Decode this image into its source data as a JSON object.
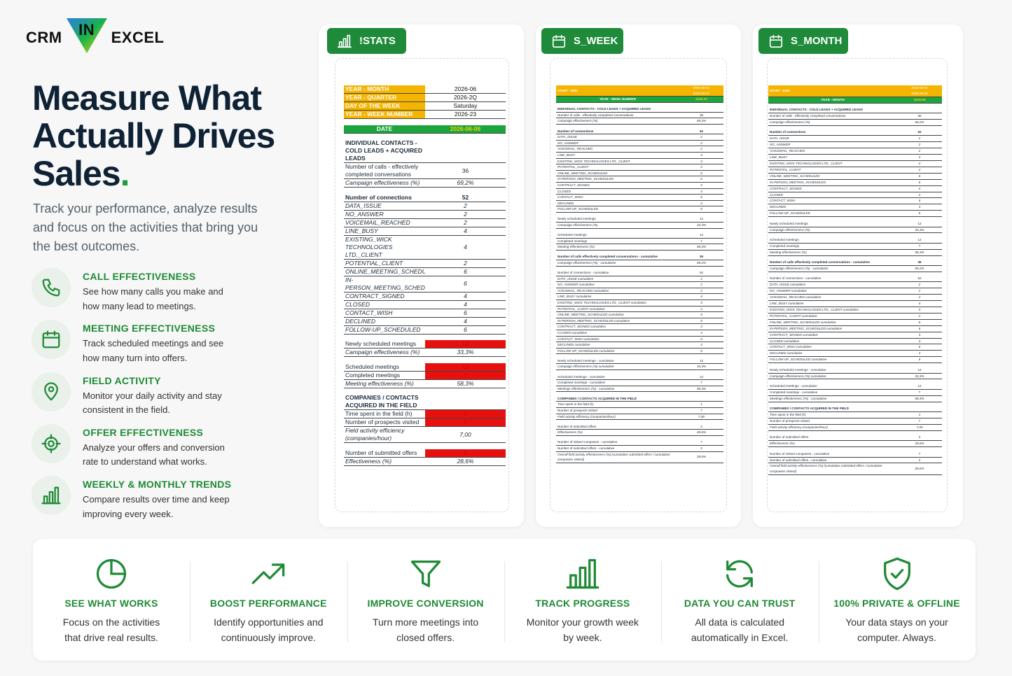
{
  "logo": {
    "left": "CRM",
    "middle": "IN",
    "right": "EXCEL"
  },
  "hero": {
    "headline": [
      "Measure What",
      "Actually Drives",
      "Sales"
    ],
    "headline_end": ".",
    "intro": "Track your performance, analyze results and focus on the activities that bring you the best outcomes."
  },
  "features": [
    {
      "title": "CALL EFFECTIVENESS",
      "text": "See how many calls you make and how many lead to meetings."
    },
    {
      "title": "MEETING EFFECTIVENESS",
      "text": "Track scheduled meetings and see how many turn into offers."
    },
    {
      "title": "FIELD ACTIVITY",
      "text": "Monitor your daily activity and stay consistent in the field."
    },
    {
      "title": "OFFER EFFECTIVENESS",
      "text": "Analyze your offers and conversion rate to understand what works."
    },
    {
      "title": "WEEKLY & MONTHLY TRENDS",
      "text": "Compare results over time and keep improving every week."
    }
  ],
  "sheets": [
    {
      "tab": "!STATS",
      "rows": [
        {
          "label": "YEAR - MONTH",
          "value": "2026-06",
          "style": "yellow"
        },
        {
          "label": "YEAR - QUARTER",
          "value": "2026-2Q",
          "style": "yellow"
        },
        {
          "label": "DAY OF THE WEEK",
          "value": "Saturday",
          "style": "yellow"
        },
        {
          "label": "YEAR - WEEK NUMBER",
          "value": "2026-23",
          "style": "yellow"
        },
        {
          "label": "DATE",
          "value": "2026-06-06",
          "style": "green"
        },
        {
          "label": "INDIVIDUAL CONTACTS - COLD LEADS + ACQUIRED LEADS",
          "style": "section"
        },
        {
          "label": "Number of calls - effectively completed conversations",
          "value": "36"
        },
        {
          "label": "Campaign effectiveness (%)",
          "value": "69,2%",
          "style": "italic"
        },
        {
          "label": "Number of connections",
          "value": "52",
          "style": "section"
        },
        {
          "label": "DATA_ISSUE",
          "value": "2",
          "style": "italic"
        },
        {
          "label": "NO_ANSWER",
          "value": "2",
          "style": "italic"
        },
        {
          "label": "VOICEMAIL_REACHED",
          "value": "2",
          "style": "italic"
        },
        {
          "label": "LINE_BUSY",
          "value": "4",
          "style": "italic"
        },
        {
          "label": "EXISTING_WICK TECHNOLOGIES LTD._CLIENT",
          "value": "4",
          "style": "italic"
        },
        {
          "label": "POTENTIAL_CLIENT",
          "value": "2",
          "style": "italic"
        },
        {
          "label": "ONLINE_MEETING_SCHEDULED",
          "value": "6",
          "style": "italic"
        },
        {
          "label": "IN-PERSON_MEETING_SCHEDULED",
          "value": "6",
          "style": "italic"
        },
        {
          "label": "CONTRACT_SIGNED",
          "value": "4",
          "style": "italic"
        },
        {
          "label": "CLOSED",
          "value": "4",
          "style": "italic"
        },
        {
          "label": "CONTACT_WISH",
          "value": "6",
          "style": "italic"
        },
        {
          "label": "DECLINED",
          "value": "4",
          "style": "italic"
        },
        {
          "label": "FOLLOW-UP_SCHEDULED",
          "value": "6",
          "style": "italic"
        },
        {
          "label": "Newly scheduled meetings",
          "value": "12",
          "style": "red"
        },
        {
          "label": "Campaign effectiveness (%)",
          "value": "33,3%",
          "style": "italic"
        },
        {
          "label": "Scheduled meetings",
          "value": "12",
          "style": "red"
        },
        {
          "label": "Completed meetings",
          "value": "7",
          "style": "red"
        },
        {
          "label": "Meeting effectiveness (%)",
          "value": "58,3%",
          "style": "italic"
        },
        {
          "label": "COMPANIES / CONTACTS ACQUIRED IN THE FIELD",
          "style": "section"
        },
        {
          "label": "Time spent in the field (h)",
          "value": "1",
          "style": "red"
        },
        {
          "label": "Number of prospects visited",
          "value": "7",
          "style": "red"
        },
        {
          "label": "Field activity efficiency (companies/hour)",
          "value": "7,00",
          "style": "italic"
        },
        {
          "label": "Number of submitted offers",
          "value": "2",
          "style": "red"
        },
        {
          "label": "Effectiveness (%)",
          "value": "28,6%",
          "style": "italic"
        }
      ]
    },
    {
      "tab": "S_WEEK",
      "rows": [
        {
          "label": "START - END",
          "value": [
            "2026-06-01",
            "2026-06-07"
          ],
          "style": "yellow"
        },
        {
          "label": "YEAR - WEEK NUMBER",
          "value": "2026-23",
          "style": "green"
        },
        {
          "label": "INDIVIDUAL CONTACTS - COLD LEADS + ACQUIRED LEADS",
          "style": "section"
        },
        {
          "label": "Number of calls - effectively completed conversations",
          "value": "36"
        },
        {
          "label": "Campaign effectiveness (%)",
          "value": "69,2%",
          "style": "italic"
        },
        {
          "label": "Number of connections",
          "value": "52",
          "style": "section"
        },
        {
          "label": "DATA_ISSUE",
          "value": "2",
          "style": "italic"
        },
        {
          "label": "NO_ANSWER",
          "value": "2",
          "style": "italic"
        },
        {
          "label": "VOICEMAIL_REACHED",
          "value": "2",
          "style": "italic"
        },
        {
          "label": "LINE_BUSY",
          "value": "4",
          "style": "italic"
        },
        {
          "label": "EXISTING_WICK TECHNOLOGIES LTD._CLIENT",
          "value": "4",
          "style": "italic"
        },
        {
          "label": "POTENTIAL_CLIENT",
          "value": "2",
          "style": "italic"
        },
        {
          "label": "ONLINE_MEETING_SCHEDULED",
          "value": "6",
          "style": "italic"
        },
        {
          "label": "IN-PERSON_MEETING_SCHEDULED",
          "value": "6",
          "style": "italic"
        },
        {
          "label": "CONTRACT_SIGNED",
          "value": "4",
          "style": "italic"
        },
        {
          "label": "CLOSED",
          "value": "4",
          "style": "italic"
        },
        {
          "label": "CONTACT_WISH",
          "value": "6",
          "style": "italic"
        },
        {
          "label": "DECLINED",
          "value": "4",
          "style": "italic"
        },
        {
          "label": "FOLLOW-UP_SCHEDULED",
          "value": "6",
          "style": "italic"
        },
        {
          "label": "Newly scheduled meetings",
          "value": "12"
        },
        {
          "label": "Campaign effectiveness (%)",
          "value": "33,3%",
          "style": "italic"
        },
        {
          "label": "Scheduled meetings",
          "value": "12"
        },
        {
          "label": "Completed meetings",
          "value": "7"
        },
        {
          "label": "Meeting effectiveness (%)",
          "value": "58,3%",
          "style": "italic"
        },
        {
          "label": "Number of calls effectively completed conversations - cumulative",
          "value": "36",
          "style": "section"
        },
        {
          "label": "Campaign effectiveness (%) - cumulative",
          "value": "69,2%",
          "style": "italic"
        },
        {
          "label": "Number of connections - cumulative",
          "value": "52"
        },
        {
          "label": "DATA_ISSUE cumulative",
          "value": "2",
          "style": "italic"
        },
        {
          "label": "NO_ANSWER cumulative",
          "value": "2",
          "style": "italic"
        },
        {
          "label": "VOICEMAIL_REACHED cumulative",
          "value": "2",
          "style": "italic"
        },
        {
          "label": "LINE_BUSY cumulative",
          "value": "4",
          "style": "italic"
        },
        {
          "label": "EXISTING_WICK TECHNOLOGIES LTD._CLIENT cumulative",
          "value": "4",
          "style": "italic"
        },
        {
          "label": "POTENTIAL_CLIENT cumulative",
          "value": "2",
          "style": "italic"
        },
        {
          "label": "ONLINE_MEETING_SCHEDULED cumulative",
          "value": "6",
          "style": "italic"
        },
        {
          "label": "IN-PERSON_MEETING_SCHEDULED cumulative",
          "value": "6",
          "style": "italic"
        },
        {
          "label": "CONTRACT_SIGNED cumulative",
          "value": "4",
          "style": "italic"
        },
        {
          "label": "CLOSED cumulative",
          "value": "4",
          "style": "italic"
        },
        {
          "label": "CONTACT_WISH cumulative",
          "value": "6",
          "style": "italic"
        },
        {
          "label": "DECLINED cumulative",
          "value": "4",
          "style": "italic"
        },
        {
          "label": "FOLLOW-UP_SCHEDULED cumulative",
          "value": "6",
          "style": "italic"
        },
        {
          "label": "Newly scheduled meetings - cumulative",
          "value": "12"
        },
        {
          "label": "Campaign effectiveness (%) cumulative",
          "value": "33,3%",
          "style": "italic"
        },
        {
          "label": "Scheduled meetings - cumulative",
          "value": "12"
        },
        {
          "label": "Completed meetings - cumulative",
          "value": "7"
        },
        {
          "label": "Meetings effectiveness (%) - cumulative",
          "value": "58,3%",
          "style": "italic"
        },
        {
          "label": "COMPANIES / CONTACTS ACQUIRED IN THE FIELD",
          "style": "section"
        },
        {
          "label": "Time spent in the field (h)",
          "value": "1"
        },
        {
          "label": "Number of prospects visited",
          "value": "7"
        },
        {
          "label": "Field activity efficiency (companies/hour)",
          "value": "7,00",
          "style": "italic"
        },
        {
          "label": "Number of submitted offers",
          "value": "2"
        },
        {
          "label": "Effectiveness (%)",
          "value": "28,6%",
          "style": "italic"
        },
        {
          "label": "Number of visited companies - cumulative",
          "value": "7"
        },
        {
          "label": "Number of submitted offers - cumulative",
          "value": "2"
        },
        {
          "label": "Overall field activity effectiveness (%) (cumulative submitted offers / cumulative companies visited)",
          "value": "28,6%",
          "style": "italic"
        }
      ]
    },
    {
      "tab": "S_MONTH",
      "rows": [
        {
          "label": "START - END",
          "value": [
            "2026-06-01",
            "2026-06-30"
          ],
          "style": "yellow"
        },
        {
          "label": "YEAR - MONTH",
          "value": "2026-06",
          "style": "green"
        },
        {
          "label": "INDIVIDUAL CONTACTS - COLD LEADS + ACQUIRED LEADS",
          "style": "section"
        },
        {
          "label": "Number of calls - effectively completed conversations",
          "value": "36"
        },
        {
          "label": "Campaign effectiveness (%)",
          "value": "69,2%",
          "style": "italic"
        },
        {
          "label": "Number of connections",
          "value": "52",
          "style": "section"
        },
        {
          "label": "DATA_ISSUE",
          "value": "2",
          "style": "italic"
        },
        {
          "label": "NO_ANSWER",
          "value": "2",
          "style": "italic"
        },
        {
          "label": "VOICEMAIL_REACHED",
          "value": "2",
          "style": "italic"
        },
        {
          "label": "LINE_BUSY",
          "value": "4",
          "style": "italic"
        },
        {
          "label": "EXISTING_WICK TECHNOLOGIES LTD._CLIENT",
          "value": "4",
          "style": "italic"
        },
        {
          "label": "POTENTIAL_CLIENT",
          "value": "2",
          "style": "italic"
        },
        {
          "label": "ONLINE_MEETING_SCHEDULED",
          "value": "6",
          "style": "italic"
        },
        {
          "label": "IN-PERSON_MEETING_SCHEDULED",
          "value": "6",
          "style": "italic"
        },
        {
          "label": "CONTRACT_SIGNED",
          "value": "4",
          "style": "italic"
        },
        {
          "label": "CLOSED",
          "value": "4",
          "style": "italic"
        },
        {
          "label": "CONTACT_WISH",
          "value": "6",
          "style": "italic"
        },
        {
          "label": "DECLINED",
          "value": "4",
          "style": "italic"
        },
        {
          "label": "FOLLOW-UP_SCHEDULED",
          "value": "6",
          "style": "italic"
        },
        {
          "label": "Newly scheduled meetings",
          "value": "12"
        },
        {
          "label": "Campaign effectiveness (%)",
          "value": "33,3%",
          "style": "italic"
        },
        {
          "label": "Scheduled meetings",
          "value": "12"
        },
        {
          "label": "Completed meetings",
          "value": "7"
        },
        {
          "label": "Meeting effectiveness (%)",
          "value": "58,3%",
          "style": "italic"
        },
        {
          "label": "Number of calls effectively completed conversations - cumulative",
          "value": "36",
          "style": "section"
        },
        {
          "label": "Campaign effectiveness (%) - cumulative",
          "value": "69,2%",
          "style": "italic"
        },
        {
          "label": "Number of connections - cumulative",
          "value": "52"
        },
        {
          "label": "DATA_ISSUE cumulative",
          "value": "2",
          "style": "italic"
        },
        {
          "label": "NO_ANSWER cumulative",
          "value": "2",
          "style": "italic"
        },
        {
          "label": "VOICEMAIL_REACHED cumulative",
          "value": "2",
          "style": "italic"
        },
        {
          "label": "LINE_BUSY cumulative",
          "value": "4",
          "style": "italic"
        },
        {
          "label": "EXISTING_WICK TECHNOLOGIES LTD._CLIENT cumulative",
          "value": "4",
          "style": "italic"
        },
        {
          "label": "POTENTIAL_CLIENT cumulative",
          "value": "2",
          "style": "italic"
        },
        {
          "label": "ONLINE_MEETING_SCHEDULED cumulative",
          "value": "6",
          "style": "italic"
        },
        {
          "label": "IN-PERSON_MEETING_SCHEDULED cumulative",
          "value": "6",
          "style": "italic"
        },
        {
          "label": "CONTRACT_SIGNED cumulative",
          "value": "4",
          "style": "italic"
        },
        {
          "label": "CLOSED cumulative",
          "value": "4",
          "style": "italic"
        },
        {
          "label": "CONTACT_WISH cumulative",
          "value": "6",
          "style": "italic"
        },
        {
          "label": "DECLINED cumulative",
          "value": "4",
          "style": "italic"
        },
        {
          "label": "FOLLOW-UP_SCHEDULED cumulative",
          "value": "6",
          "style": "italic"
        },
        {
          "label": "Newly scheduled meetings - cumulative",
          "value": "12"
        },
        {
          "label": "Campaign effectiveness (%) cumulative",
          "value": "33,3%",
          "style": "italic"
        },
        {
          "label": "Scheduled meetings - cumulative",
          "value": "12"
        },
        {
          "label": "Completed meetings - cumulative",
          "value": "7"
        },
        {
          "label": "Meetings effectiveness (%) - cumulative",
          "value": "58,3%",
          "style": "italic"
        },
        {
          "label": "COMPANIES / CONTACTS ACQUIRED IN THE FIELD",
          "style": "section"
        },
        {
          "label": "Time spent in the field (h)",
          "value": "1"
        },
        {
          "label": "Number of prospects visited",
          "value": "7"
        },
        {
          "label": "Field activity efficiency (companies/hour)",
          "value": "7,00",
          "style": "italic"
        },
        {
          "label": "Number of submitted offers",
          "value": "2"
        },
        {
          "label": "Effectiveness (%)",
          "value": "28,6%",
          "style": "italic"
        },
        {
          "label": "Number of visited companies - cumulative",
          "value": "7"
        },
        {
          "label": "Number of submitted offers - cumulative",
          "value": "2"
        },
        {
          "label": "Overall field activity effectiveness (%) (cumulative submitted offers / cumulative companies visited)",
          "value": "28,6%",
          "style": "italic"
        }
      ]
    }
  ],
  "benefits": [
    {
      "title": "SEE WHAT WORKS",
      "text": "Focus on the activities that drive real results."
    },
    {
      "title": "BOOST PERFORMANCE",
      "text": "Identify opportunities and continuously improve."
    },
    {
      "title": "IMPROVE CONVERSION",
      "text": "Turn more meetings into closed offers."
    },
    {
      "title": "TRACK PROGRESS",
      "text": "Monitor your growth week by week."
    },
    {
      "title": "DATA YOU CAN TRUST",
      "text": "All data is calculated automatically in Excel."
    },
    {
      "title": "100% PRIVATE & OFFLINE",
      "text": "Your data stays on your computer. Always."
    }
  ]
}
